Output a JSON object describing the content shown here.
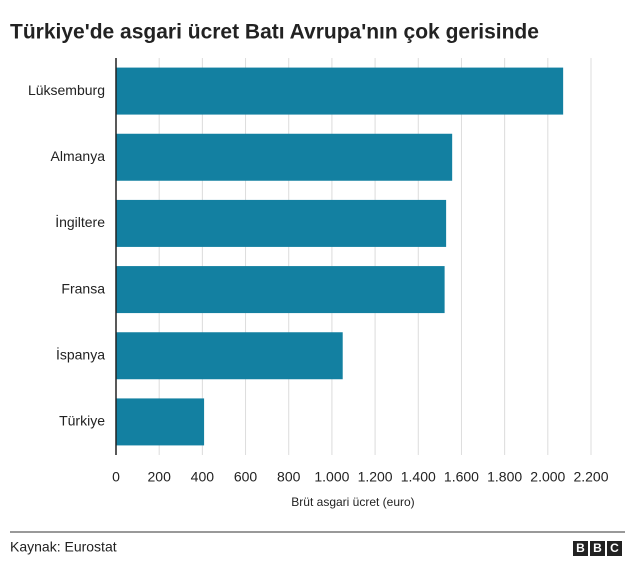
{
  "chart_data": {
    "type": "barh",
    "title": "Türkiye'de asgari ücret Batı Avrupa'nın çok gerisinde",
    "categories": [
      "Lüksemburg",
      "Almanya",
      "İngiltere",
      "Fransa",
      "İspanya",
      "Türkiye"
    ],
    "values": [
      2071,
      1557,
      1529,
      1522,
      1050,
      408
    ],
    "color": "#1380a1",
    "x_label": "Brüt asgari ücret (euro)",
    "xlim": [
      0,
      2200
    ],
    "xticks": [
      0,
      200,
      400,
      600,
      800,
      {
        "value": 1000,
        "label": "1.000"
      },
      {
        "value": 1200,
        "label": "1.200"
      },
      {
        "value": 1400,
        "label": "1.400"
      },
      {
        "value": 1600,
        "label": "1.600"
      },
      {
        "value": 1800,
        "label": "1.800"
      },
      {
        "value": 2000,
        "label": "2.000"
      },
      {
        "value": 2200,
        "label": "2.200"
      }
    ],
    "grid": true
  },
  "source": "Kaynak: Eurostat",
  "logo": [
    "B",
    "B",
    "C"
  ]
}
